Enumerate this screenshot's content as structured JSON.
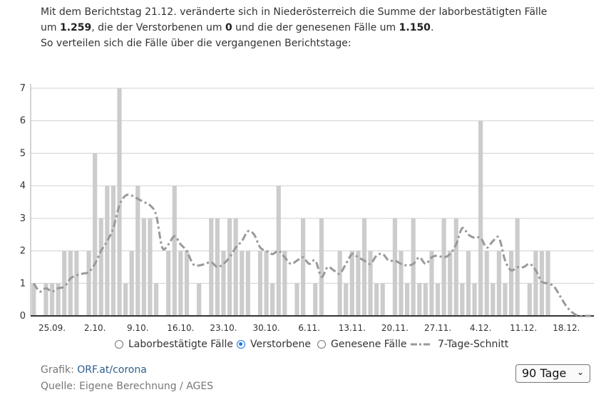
{
  "intro": {
    "l1": "Mit dem Berichtstag 21.12. veränderte sich in Niederösterreich die Summe der laborbestätigten Fälle",
    "l2_a": "um ",
    "l2_cases": "1.259",
    "l2_b": ", die der Verstorbenen um ",
    "l2_deaths": "0",
    "l2_c": " und die der genesenen Fälle um ",
    "l2_recovered": "1.150",
    "l2_d": ".",
    "l3": "So verteilen sich die Fälle über die vergangenen Berichtstage:"
  },
  "chart_data": {
    "type": "bar",
    "title": "",
    "xlabel": "",
    "ylabel": "",
    "ylim": [
      0,
      7
    ],
    "yticks": [
      "0",
      "1",
      "2",
      "3",
      "4",
      "5",
      "6",
      "7"
    ],
    "grid": true,
    "x_tick_labels": [
      "25.09.",
      "2.10.",
      "9.10.",
      "16.10.",
      "23.10.",
      "30.10.",
      "6.11.",
      "13.11.",
      "20.11.",
      "27.11.",
      "4.12.",
      "11.12.",
      "18.12."
    ],
    "series": [
      {
        "name": "Verstorbene",
        "kind": "bar",
        "color": "#cccccc",
        "values": [
          1,
          0,
          1,
          1,
          1,
          2,
          2,
          2,
          0,
          2,
          5,
          3,
          4,
          4,
          7,
          1,
          2,
          4,
          3,
          3,
          1,
          0,
          2,
          4,
          2,
          2,
          0,
          1,
          0,
          3,
          3,
          2,
          3,
          3,
          2,
          2,
          0,
          2,
          2,
          1,
          4,
          2,
          0,
          1,
          3,
          0,
          1,
          3,
          0,
          0,
          2,
          1,
          2,
          2,
          3,
          2,
          1,
          1,
          0,
          3,
          2,
          1,
          3,
          1,
          1,
          2,
          1,
          3,
          2,
          3,
          1,
          2,
          1,
          6,
          2,
          1,
          2,
          1,
          2,
          3,
          0,
          1,
          2,
          2,
          2,
          0,
          0,
          0,
          0,
          0,
          0,
          0
        ]
      },
      {
        "name": "7-Tage-Schnitt",
        "kind": "line",
        "style": "dash-dot",
        "color": "#999999",
        "values": [
          1,
          0.75,
          0.85,
          0.75,
          0.85,
          0.9,
          1.15,
          1.25,
          1.3,
          1.35,
          1.6,
          2,
          2.3,
          2.7,
          3.4,
          3.7,
          3.7,
          3.6,
          3.5,
          3.4,
          3.1,
          2.1,
          2.2,
          2.45,
          2.2,
          2,
          1.6,
          1.55,
          1.6,
          1.65,
          1.5,
          1.6,
          1.8,
          2.1,
          2.3,
          2.6,
          2.5,
          2.1,
          2,
          1.9,
          2,
          1.8,
          1.6,
          1.7,
          1.8,
          1.6,
          1.7,
          1.2,
          1.5,
          1.4,
          1.3,
          1.6,
          1.9,
          1.8,
          1.7,
          1.6,
          1.85,
          1.9,
          1.7,
          1.7,
          1.6,
          1.55,
          1.6,
          1.8,
          1.6,
          1.8,
          1.85,
          1.8,
          1.9,
          2.2,
          2.7,
          2.5,
          2.4,
          2.4,
          2.1,
          2.3,
          2.4,
          1.7,
          1.4,
          1.5,
          1.5,
          1.6,
          1.4,
          1.05,
          1,
          0.9,
          0.6,
          0.3,
          0.1,
          0,
          0,
          0
        ]
      }
    ]
  },
  "legend": {
    "items": [
      {
        "label": "Laborbestätigte Fälle",
        "checked": false
      },
      {
        "label": "Verstorbene",
        "checked": true
      },
      {
        "label": "Genesene Fälle",
        "checked": false
      }
    ],
    "avg_label": "7-Tage-Schnitt"
  },
  "footer": {
    "graphic_prefix": "Grafik: ",
    "graphic_link": "ORF.at/corona",
    "source": "Quelle: Eigene Berechnung / AGES"
  },
  "range_select": {
    "value": "90 Tage",
    "chevron": "⌄"
  }
}
